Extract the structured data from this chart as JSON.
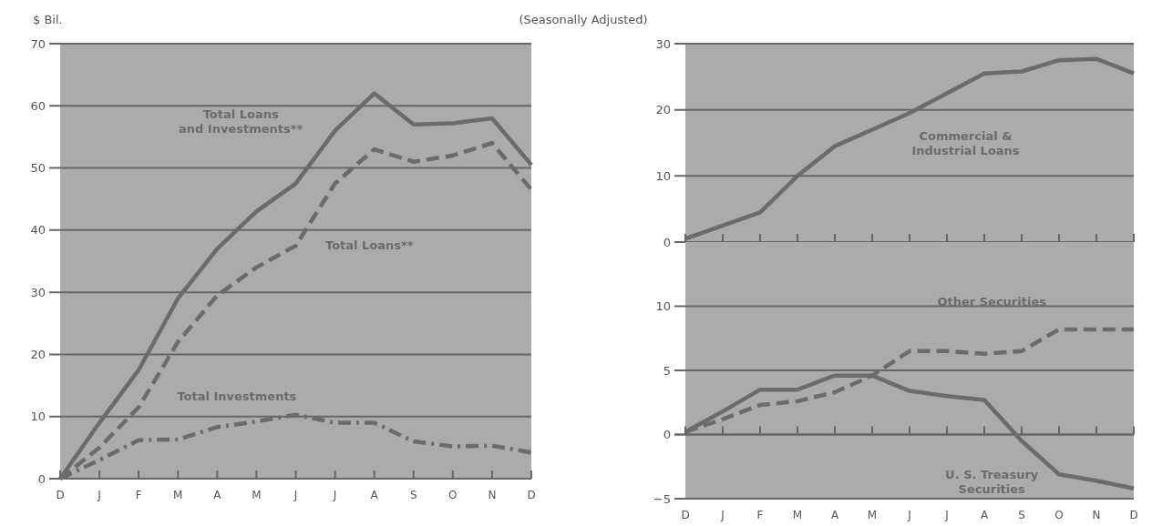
{
  "chart_data": [
    {
      "type": "line",
      "subtitle": "(Seasonally Adjusted)",
      "ylabel": "$ Bil.",
      "categories": [
        "D",
        "J",
        "F",
        "M",
        "A",
        "M",
        "J",
        "J",
        "A",
        "S",
        "O",
        "N",
        "D"
      ],
      "ylim": [
        0,
        70
      ],
      "yticks": [
        0,
        10,
        20,
        30,
        40,
        50,
        60,
        70
      ],
      "grid": "y",
      "series": [
        {
          "name": "Total Loans and Investments**",
          "color": "#6b6b6b",
          "line_style": "solid",
          "values": [
            0,
            9,
            17.5,
            29,
            37,
            43,
            47.5,
            56,
            62,
            57,
            57.2,
            58,
            50.5
          ]
        },
        {
          "name": "Total Loans**",
          "color": "#6b6b6b",
          "line_style": "dashed",
          "values": [
            0,
            5,
            11.5,
            22,
            29.5,
            34,
            37.5,
            47.5,
            53,
            51,
            52,
            54,
            46.5
          ]
        },
        {
          "name": "Total Investments",
          "color": "#6b6b6b",
          "line_style": "dashdot",
          "values": [
            0,
            3,
            6.2,
            6.3,
            8.3,
            9.2,
            10.3,
            9,
            9,
            6,
            5.2,
            5.3,
            4.2
          ]
        }
      ]
    },
    {
      "type": "line",
      "categories": [
        null,
        null,
        null,
        null,
        null,
        null,
        null,
        null,
        null,
        null,
        null,
        null,
        null
      ],
      "ylim": [
        0,
        30
      ],
      "yticks": [
        0,
        10,
        20,
        30
      ],
      "grid": "y",
      "series": [
        {
          "name": "Commercial & Industrial Loans",
          "color": "#6b6b6b",
          "line_style": "solid",
          "values": [
            0.5,
            2.5,
            4.5,
            10,
            14.5,
            17,
            19.5,
            22.5,
            25.5,
            25.8,
            27.5,
            27.7,
            25.5
          ]
        }
      ]
    },
    {
      "type": "line",
      "categories": [
        "D",
        "J",
        "F",
        "M",
        "A",
        "M",
        "J",
        "J",
        "A",
        "S",
        "O",
        "N",
        "D"
      ],
      "ylim": [
        -5,
        15
      ],
      "yticks": [
        {
          "value": -5,
          "label": "−5"
        },
        0,
        5,
        10
      ],
      "grid": "y",
      "series": [
        {
          "name": "U. S. Treasury Securities",
          "color": "#6b6b6b",
          "line_style": "solid",
          "values": [
            0.2,
            1.8,
            3.5,
            3.5,
            4.6,
            4.6,
            3.4,
            3,
            2.7,
            -0.5,
            -3.1,
            -3.6,
            -4.2
          ]
        },
        {
          "name": "Other Securities",
          "color": "#6b6b6b",
          "line_style": "dashed",
          "values": [
            0.2,
            1.2,
            2.3,
            2.6,
            3.3,
            4.6,
            6.5,
            6.5,
            6.3,
            6.5,
            8.2,
            8.2,
            8.2
          ]
        }
      ]
    }
  ]
}
